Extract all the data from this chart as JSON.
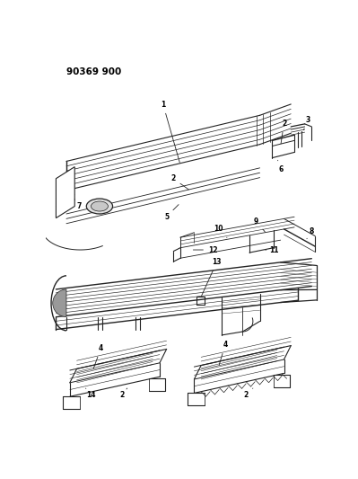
{
  "title": "90369 900",
  "background_color": "#ffffff",
  "line_color": "#222222",
  "label_color": "#000000",
  "figsize": [
    3.99,
    5.33
  ],
  "dpi": 100
}
